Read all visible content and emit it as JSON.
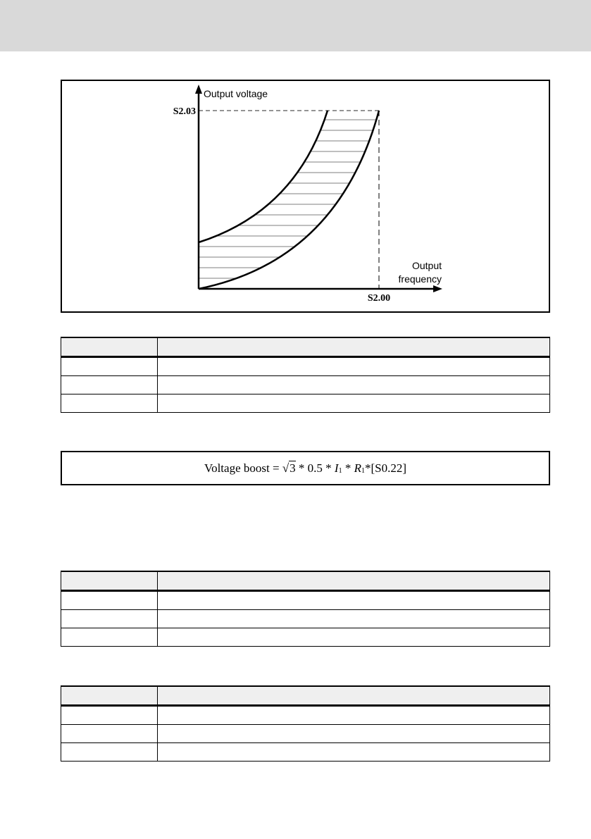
{
  "diagram": {
    "y_axis_label": "Output voltage",
    "x_axis_label_line1": "Output",
    "x_axis_label_line2": "frequency",
    "y_marker": "S2.03",
    "x_marker": "S2.00"
  },
  "tables": [
    {
      "rows": 3
    },
    {
      "rows": 3
    },
    {
      "rows": 3
    }
  ],
  "formula": {
    "lhs": "Voltage boost = ",
    "root": "√",
    "radicand": "3",
    "mid": " * 0.5 * ",
    "i": "I",
    "i_sub": "1",
    "times": " * ",
    "r": "R",
    "r_sub": "1",
    "tail": "*[S0.22]"
  }
}
